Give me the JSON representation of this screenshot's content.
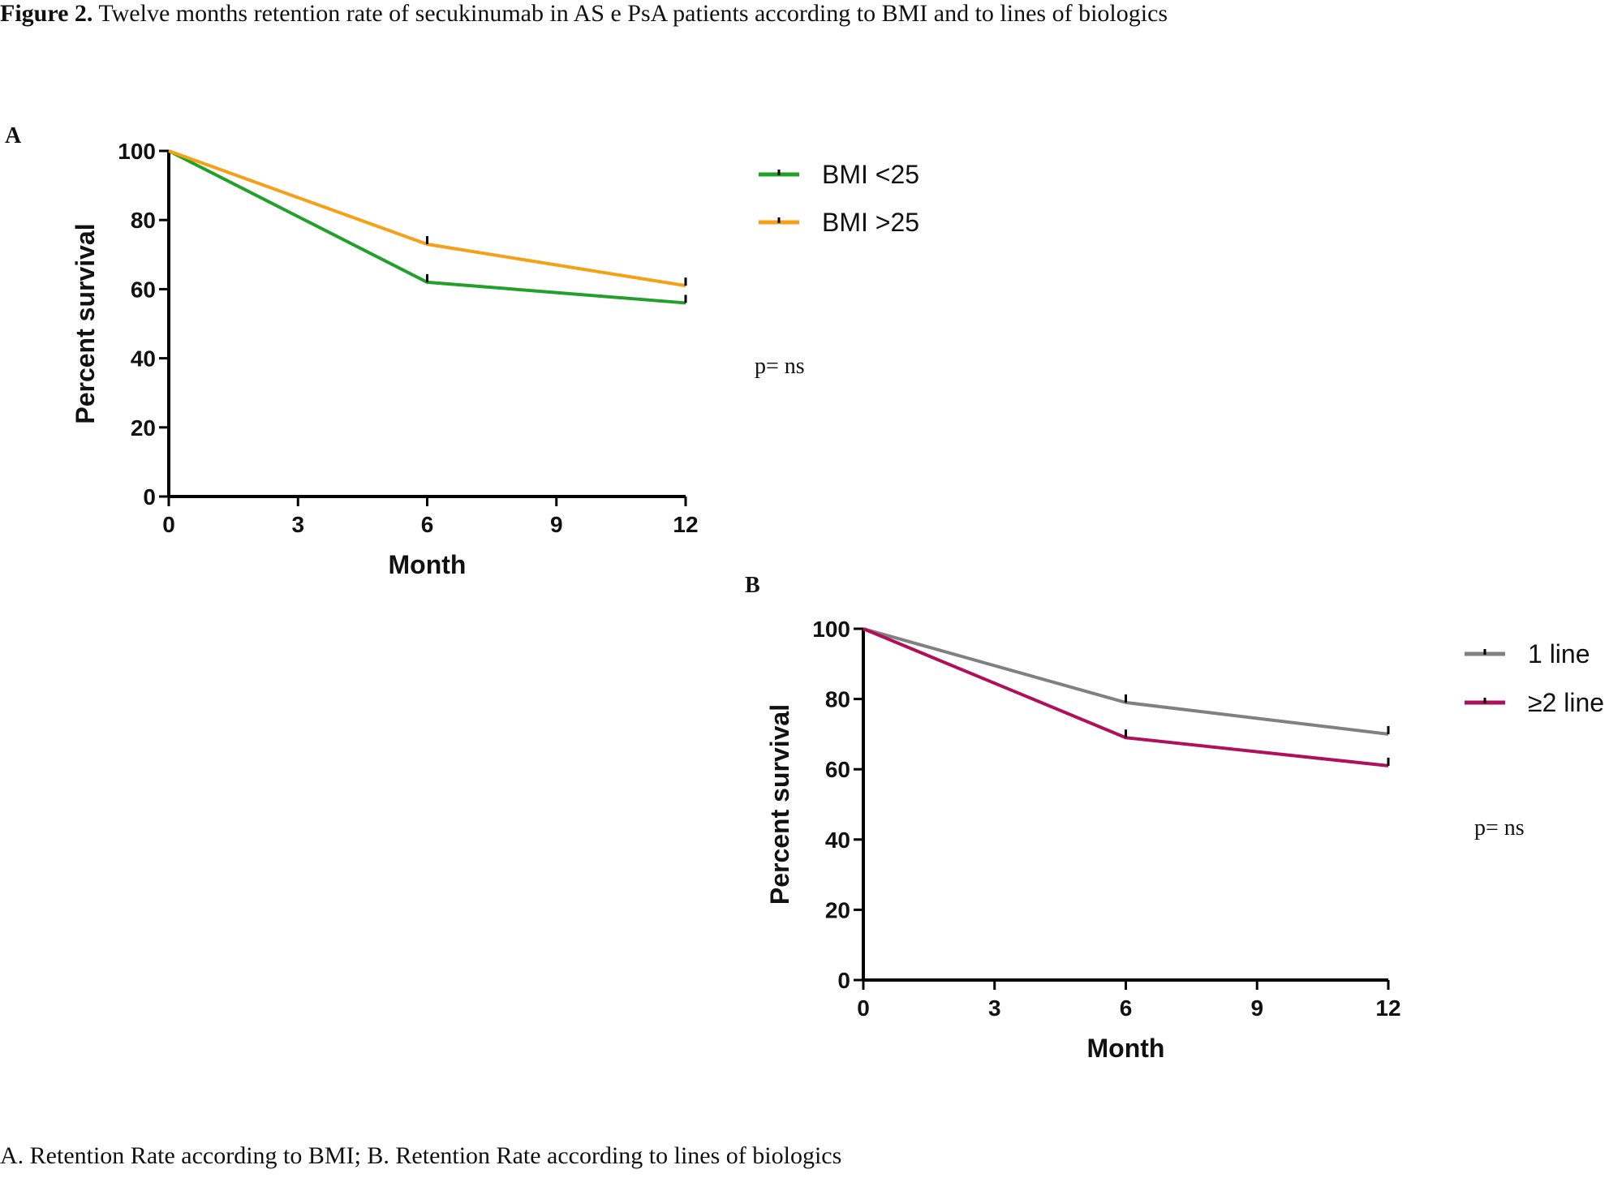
{
  "figure": {
    "heading_bold": "Figure 2.",
    "heading_text": " Twelve months retention rate of secukinumab in AS e PsA patients according to BMI and to lines of biologics",
    "caption": "A. Retention Rate according to BMI; B. Retention Rate according to lines of biologics"
  },
  "chart_data": [
    {
      "panel": "A",
      "type": "line",
      "xlabel": "Month",
      "ylabel": "Percent survival",
      "xlim": [
        0,
        12
      ],
      "ylim": [
        0,
        100
      ],
      "xticks": [
        "0",
        "3",
        "6",
        "9",
        "12"
      ],
      "yticks": [
        "0",
        "20",
        "40",
        "60",
        "80",
        "100"
      ],
      "x": [
        0,
        6,
        12
      ],
      "series": [
        {
          "name": "BMI <25",
          "color": "#22a02a",
          "values": [
            100,
            62,
            56
          ]
        },
        {
          "name": "BMI >25",
          "color": "#f5a017",
          "values": [
            100,
            73,
            61
          ]
        }
      ],
      "legend": "right",
      "grid": false,
      "annotation": "p= ns"
    },
    {
      "panel": "B",
      "type": "line",
      "xlabel": "Month",
      "ylabel": "Percent survival",
      "xlim": [
        0,
        12
      ],
      "ylim": [
        0,
        100
      ],
      "xticks": [
        "0",
        "3",
        "6",
        "9",
        "12"
      ],
      "yticks": [
        "0",
        "20",
        "40",
        "60",
        "80",
        "100"
      ],
      "x": [
        0,
        6,
        12
      ],
      "series": [
        {
          "name": "1 line",
          "color": "#808080",
          "values": [
            100,
            79,
            70
          ]
        },
        {
          "name": "≥2 line",
          "color": "#b0105a",
          "values": [
            100,
            69,
            61
          ]
        }
      ],
      "legend": "right",
      "grid": false,
      "annotation": "p= ns"
    }
  ]
}
